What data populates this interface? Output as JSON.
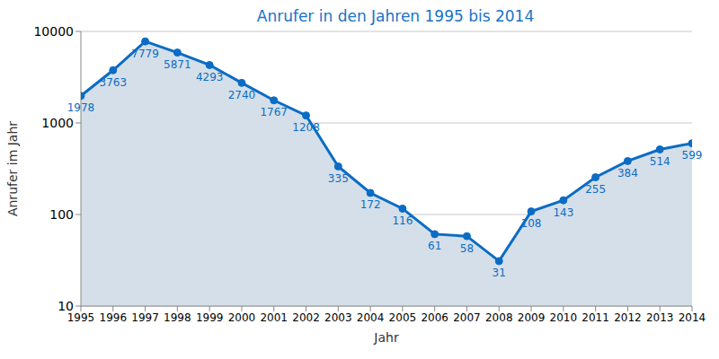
{
  "chart_data": {
    "type": "area",
    "title": "Anrufer in den Jahren 1995 bis 2014",
    "x_label": "Jahr",
    "y_label": "Anrufer im Jahr",
    "x": [
      1995,
      1996,
      1997,
      1998,
      1999,
      2000,
      2001,
      2002,
      2003,
      2004,
      2005,
      2006,
      2007,
      2008,
      2009,
      2010,
      2011,
      2012,
      2013,
      2014
    ],
    "values": [
      1978,
      3763,
      7779,
      5871,
      4293,
      2740,
      1767,
      1208,
      335,
      172,
      116,
      61,
      58,
      31,
      108,
      143,
      255,
      384,
      514,
      599
    ],
    "color": "#0b6cc4",
    "marker": "circle",
    "data_labels": true,
    "log": "y",
    "grid": true,
    "xlim": [
      1995,
      2014
    ],
    "xticks": [
      1995,
      1996,
      1997,
      1998,
      1999,
      2000,
      2001,
      2002,
      2003,
      2004,
      2005,
      2006,
      2007,
      2008,
      2009,
      2010,
      2011,
      2012,
      2013,
      2014
    ],
    "ylim": [
      10,
      10000
    ],
    "yticks": [
      10,
      100,
      1000,
      10000
    ]
  }
}
